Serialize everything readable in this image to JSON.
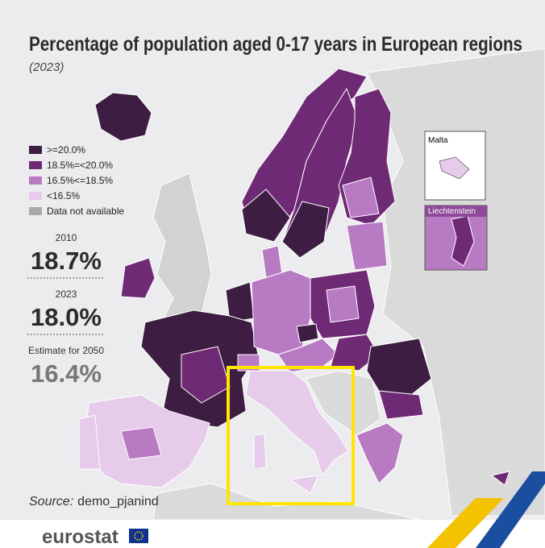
{
  "header": {
    "title": "Percentage of population aged 0-17 years in European regions",
    "subtitle": "(2023)"
  },
  "legend": {
    "items": [
      {
        "label": ">=20.0%",
        "color": "#3d1d42"
      },
      {
        "label": "18.5%=<20.0%",
        "color": "#6f2a75"
      },
      {
        "label": "16.5%<=18.5%",
        "color": "#b97ac4"
      },
      {
        "label": "<16.5%",
        "color": "#e6cbea"
      },
      {
        "label": "Data not available",
        "color": "#a9a9a9"
      }
    ]
  },
  "stats": [
    {
      "label": "2010",
      "value": "18.7%"
    },
    {
      "label": "2023",
      "value": "18.0%"
    },
    {
      "label": "Estimate for 2050",
      "value": "16.4%"
    }
  ],
  "insets": {
    "malta": "Malta",
    "liechtenstein": "Liechtenstein"
  },
  "source": {
    "prefix": "Source:",
    "text": "demo_pjanind"
  },
  "footer": {
    "logo": "eurostat"
  }
}
